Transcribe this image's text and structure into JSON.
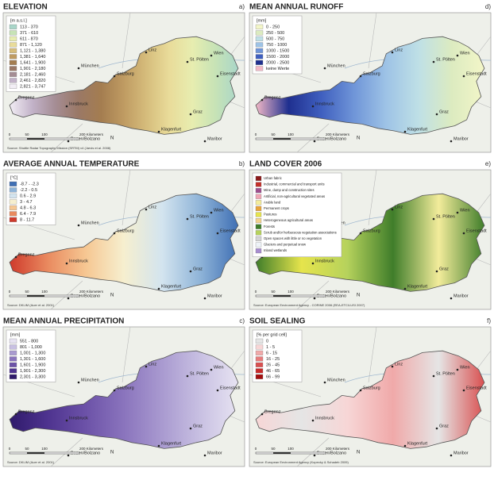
{
  "cities": [
    {
      "name": "München"
    },
    {
      "name": "Linz"
    },
    {
      "name": "St. Pölten"
    },
    {
      "name": "Wien"
    },
    {
      "name": "Salzburg"
    },
    {
      "name": "Eisenstadt"
    },
    {
      "name": "Bregenz"
    },
    {
      "name": "Innsbruck"
    },
    {
      "name": "Graz"
    },
    {
      "name": "Klagenfurt"
    },
    {
      "name": "Bozen/Bolzano"
    },
    {
      "name": "Maribor"
    }
  ],
  "scale_labels": [
    "0",
    "50",
    "100",
    "200 Kilometers"
  ],
  "panels": [
    {
      "title": "ELEVATION",
      "letter": "a)",
      "legend_title": "[m a.s.l.]",
      "legend": [
        {
          "label": "113 - 370",
          "color": "#a9d6c9"
        },
        {
          "label": "371 - 610",
          "color": "#c7e3b6"
        },
        {
          "label": "611 - 870",
          "color": "#e7edb0"
        },
        {
          "label": "871 - 1,120",
          "color": "#e9dc9a"
        },
        {
          "label": "1,121 - 1,380",
          "color": "#d6bd7c"
        },
        {
          "label": "1,381 - 1,640",
          "color": "#bf9b62"
        },
        {
          "label": "1,641 - 1,900",
          "color": "#a47d50"
        },
        {
          "label": "1,901 - 2,180",
          "color": "#9a7866"
        },
        {
          "label": "2,181 - 2,460",
          "color": "#a58d94"
        },
        {
          "label": "2,461 - 2,820",
          "color": "#c2b2c8"
        },
        {
          "label": "2,821 - 3,747",
          "color": "#f2eef5"
        }
      ],
      "source": "Source: Shuttle Radar Topography Mission (SRTM) v4 (Jarvis et al. 2008)"
    },
    {
      "title": "MEAN ANNUAL RUNOFF",
      "letter": "d)",
      "legend_title": "[mm]",
      "legend": [
        {
          "label": "0 - 250",
          "color": "#f3f6c8"
        },
        {
          "label": "250 - 500",
          "color": "#dcebc0"
        },
        {
          "label": "500 - 750",
          "color": "#bfe0e6"
        },
        {
          "label": "750 - 1000",
          "color": "#9ec3e6"
        },
        {
          "label": "1000 - 1500",
          "color": "#6f95d8"
        },
        {
          "label": "1500 - 2000",
          "color": "#3f5fbf"
        },
        {
          "label": "2000 - 2500",
          "color": "#1f2f8f"
        },
        {
          "label": "keine Werte",
          "color": "#f2b8c6"
        }
      ]
    },
    {
      "title": "AVERAGE ANNUAL TEMPERATURE",
      "letter": "b)",
      "legend_title": "[°C]",
      "legend": [
        {
          "label": "-8.7 - -2.3",
          "color": "#3f6fb4"
        },
        {
          "label": "-2.2 - 0.5",
          "color": "#8fb4d8"
        },
        {
          "label": "0.6 - 2.9",
          "color": "#d3e4ef"
        },
        {
          "label": "3 - 4.7",
          "color": "#f6efcf"
        },
        {
          "label": "4.8 - 6.3",
          "color": "#f6c792"
        },
        {
          "label": "6.4 - 7.9",
          "color": "#e98a5f"
        },
        {
          "label": "8 - 11.7",
          "color": "#cf3a2c"
        }
      ],
      "source": "Source: DKLIM (Auer et al. 2001)"
    },
    {
      "title": "LAND COVER 2006",
      "letter": "e)",
      "legend": [
        {
          "label": "Urban fabric",
          "color": "#8b1a1a"
        },
        {
          "label": "Industrial, commercial and transport units",
          "color": "#c4302b"
        },
        {
          "label": "Mine, dump and construction sites",
          "color": "#9e4f8e"
        },
        {
          "label": "Artificial, non-agricultural vegetated areas",
          "color": "#f0a6b4"
        },
        {
          "label": "Arable land",
          "color": "#f3ec9b"
        },
        {
          "label": "Permanent crops",
          "color": "#e8a43a"
        },
        {
          "label": "Pastures",
          "color": "#e6e44c"
        },
        {
          "label": "Heterogeneous agricultural areas",
          "color": "#f2d28c"
        },
        {
          "label": "Forests",
          "color": "#3f7d2a"
        },
        {
          "label": "Scrub and/or herbaceous vegetation associations",
          "color": "#b6d25c"
        },
        {
          "label": "Open spaces with little or no vegetation",
          "color": "#d4d4d4"
        },
        {
          "label": "Glaciers and perpetual snow",
          "color": "#eef3f8"
        },
        {
          "label": "Inland wetlands",
          "color": "#a88dd0"
        }
      ],
      "source": "Source: European Environment Agency - CORINE 2006 (EEA-ETC/LUSI 2007)"
    },
    {
      "title": "MEAN ANNUAL PRECIPITATION",
      "letter": "c)",
      "legend_title": "[mm]",
      "legend": [
        {
          "label": "551 - 800",
          "color": "#e7e3f2"
        },
        {
          "label": "801 - 1,000",
          "color": "#c8c0e2"
        },
        {
          "label": "1,001 - 1,300",
          "color": "#a99ad0"
        },
        {
          "label": "1,301 - 1,600",
          "color": "#8a74bd"
        },
        {
          "label": "1,601 - 1,900",
          "color": "#6c52a8"
        },
        {
          "label": "1,901 - 2,300",
          "color": "#4e338f"
        },
        {
          "label": "2,301 - 3,300",
          "color": "#2f1a6b"
        }
      ],
      "source": "Source: DKLIM (Auer et al. 2001)"
    },
    {
      "title": "SOIL SEALING",
      "letter": "f)",
      "legend_title": "[% per grid cell]",
      "legend": [
        {
          "label": "0",
          "color": "#e5e5e5"
        },
        {
          "label": "1 - 5",
          "color": "#f7d6d6"
        },
        {
          "label": "6 - 15",
          "color": "#f0a9a9"
        },
        {
          "label": "16 - 25",
          "color": "#e67c7c"
        },
        {
          "label": "26 - 45",
          "color": "#d95050"
        },
        {
          "label": "46 - 65",
          "color": "#c72a2a"
        },
        {
          "label": "66 - 99",
          "color": "#a30e0e"
        }
      ],
      "source": "Source: European Environment Agency (Kopecky & Schadeb 2009)"
    }
  ]
}
